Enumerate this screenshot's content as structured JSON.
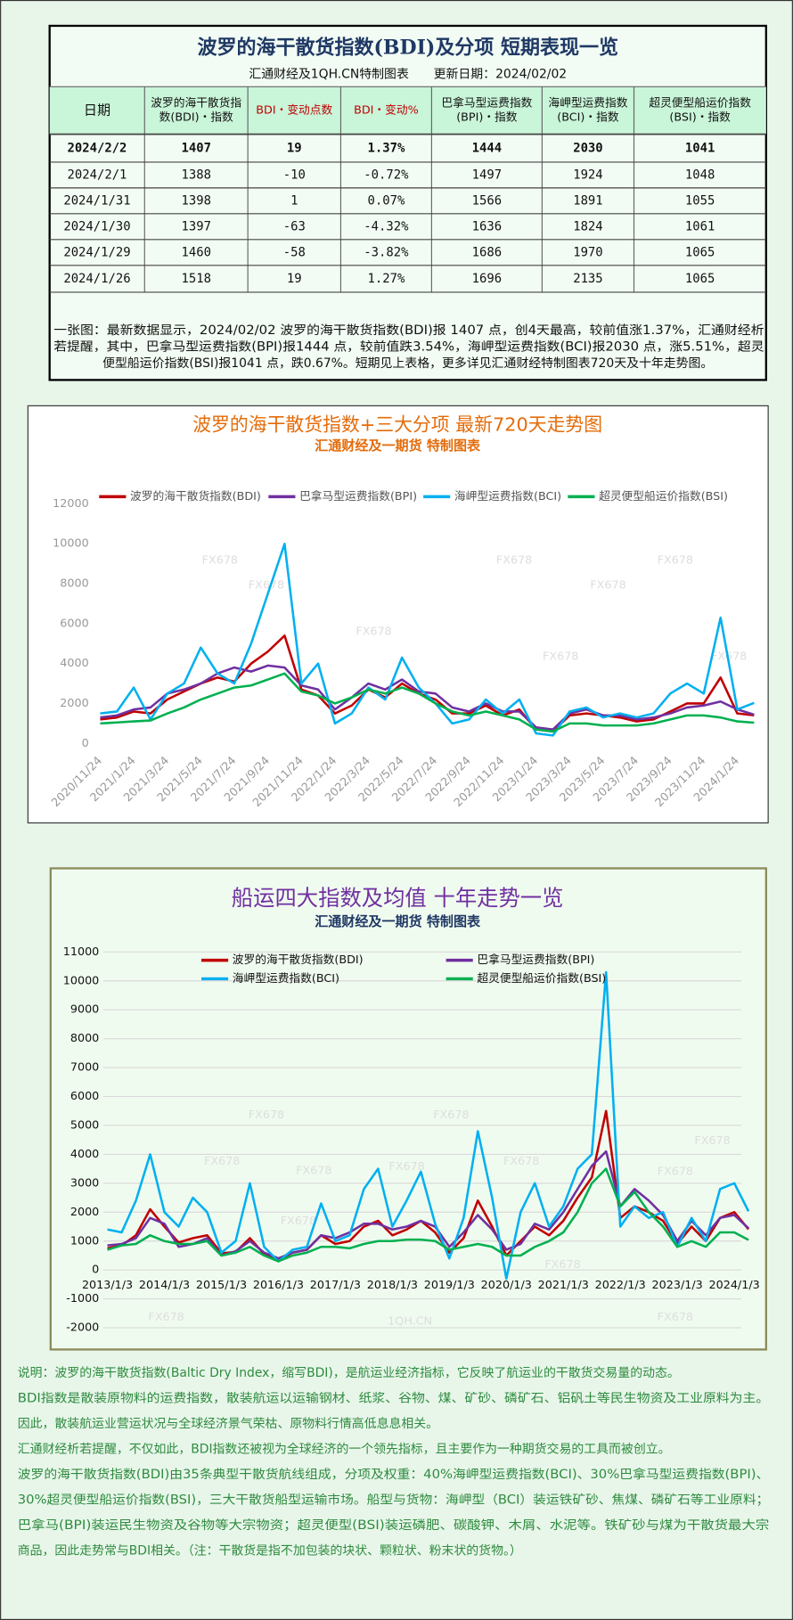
{
  "header": {
    "title": "波罗的海干散货指数(BDI)及分项  短期表现一览",
    "subtitle": "汇通财经及1QH.CN特制图表　　更新日期：2024/02/02"
  },
  "table": {
    "columns": [
      [
        "日期"
      ],
      [
        "波罗的海干散货指",
        "数(BDI)・指数"
      ],
      [
        "BDI・变动点数"
      ],
      [
        "BDI・变动%"
      ],
      [
        "巴拿马型运费指数",
        "(BPI)・指数"
      ],
      [
        "海岬型运费指数",
        "(BCI)・指数"
      ],
      [
        "超灵便型船运价指数",
        "(BSI)・指数"
      ]
    ],
    "rows": [
      [
        "2024/2/2",
        "1407",
        "19",
        "1.37%",
        "1444",
        "2030",
        "1041"
      ],
      [
        "2024/2/1",
        "1388",
        "-10",
        "-0.72%",
        "1497",
        "1924",
        "1048"
      ],
      [
        "2024/1/31",
        "1398",
        "1",
        "0.07%",
        "1566",
        "1891",
        "1055"
      ],
      [
        "2024/1/30",
        "1397",
        "-63",
        "-4.32%",
        "1636",
        "1824",
        "1061"
      ],
      [
        "2024/1/29",
        "1460",
        "-58",
        "-3.82%",
        "1686",
        "1970",
        "1065"
      ],
      [
        "2024/1/26",
        "1518",
        "19",
        "1.27%",
        "1696",
        "2135",
        "1065"
      ]
    ]
  },
  "summary": [
    "一张图：最新数据显示，2024/02/02 波罗的海干散货指数(BDI)报 1407 点，创4天最高，较前值涨1.37%，汇通财经析",
    "若提醒，其中，巴拿马型运费指数(BPI)报1444 点，较前值跌3.54%，海岬型运费指数(BCI)报2030 点，涨5.51%，超灵",
    "便型船运价指数(BSI)报1041 点，跌0.67%。短期见上表格，更多详见汇通财经特制图表720天及十年走势图。"
  ],
  "chart_data": [
    {
      "type": "line",
      "title": "波罗的海干散货指数+三大分项  最新720天走势图",
      "subtitle": "汇通财经及一期货  特制图表",
      "grid": false,
      "legend": "top",
      "categories": [
        "2020/11/24",
        null,
        "2021/1/24",
        null,
        "2021/3/24",
        null,
        "2021/5/24",
        null,
        "2021/7/24",
        null,
        "2021/9/24",
        null,
        "2021/11/24",
        null,
        "2022/1/24",
        null,
        "2022/3/24",
        null,
        "2022/5/24",
        null,
        "2022/7/24",
        null,
        "2022/9/24",
        null,
        "2022/11/24",
        null,
        "2023/1/24",
        null,
        "2023/3/24",
        null,
        "2023/5/24",
        null,
        "2023/7/24",
        null,
        "2023/9/24",
        null,
        "2023/11/24",
        null,
        "2024/1/24",
        null
      ],
      "series": [
        {
          "name": "波罗的海干散货指数(BDI)",
          "color": "#c00000",
          "values": [
            1200,
            1300,
            1600,
            1500,
            2200,
            2600,
            3000,
            3300,
            3100,
            4000,
            4600,
            5400,
            2700,
            2400,
            1500,
            1900,
            2700,
            2300,
            3000,
            2500,
            2200,
            1500,
            1500,
            1900,
            1400,
            1700,
            700,
            600,
            1400,
            1500,
            1400,
            1300,
            1100,
            1200,
            1600,
            2000,
            2000,
            3300,
            1500,
            1407
          ]
        },
        {
          "name": "巴拿马型运费指数(BPI)",
          "color": "#7030a0",
          "values": [
            1300,
            1400,
            1700,
            1800,
            2500,
            2700,
            3000,
            3500,
            3800,
            3600,
            3900,
            3800,
            2900,
            2700,
            1700,
            2300,
            3000,
            2700,
            3200,
            2600,
            2500,
            1800,
            1600,
            2000,
            1600,
            1600,
            800,
            700,
            1500,
            1700,
            1400,
            1400,
            1200,
            1300,
            1500,
            1800,
            1900,
            2100,
            1700,
            1444
          ]
        },
        {
          "name": "海岬型运费指数(BCI)",
          "color": "#00b0f0",
          "values": [
            1500,
            1600,
            2800,
            1200,
            2500,
            3000,
            4800,
            3500,
            3000,
            5000,
            7500,
            10000,
            3000,
            4000,
            1000,
            1500,
            2800,
            2200,
            4300,
            2800,
            2000,
            1000,
            1200,
            2200,
            1500,
            2200,
            500,
            400,
            1600,
            1800,
            1300,
            1500,
            1300,
            1500,
            2500,
            3000,
            2500,
            6300,
            1700,
            2030
          ]
        },
        {
          "name": "超灵便型船运价指数(BSI)",
          "color": "#00b050",
          "values": [
            1000,
            1050,
            1100,
            1150,
            1500,
            1800,
            2200,
            2500,
            2800,
            2900,
            3200,
            3500,
            2600,
            2400,
            2000,
            2300,
            2700,
            2500,
            2800,
            2500,
            2000,
            1600,
            1400,
            1600,
            1400,
            1200,
            700,
            600,
            1000,
            1000,
            900,
            900,
            900,
            1000,
            1200,
            1400,
            1400,
            1300,
            1100,
            1041
          ]
        }
      ],
      "ylim": [
        0,
        12000
      ],
      "yticks": [
        0,
        2000,
        4000,
        6000,
        8000,
        10000,
        12000
      ],
      "watermarks": [
        "FX678",
        "FX678",
        "FX678",
        "FX678",
        "FX678",
        "FX678",
        "FX678",
        "FX678"
      ]
    },
    {
      "type": "line",
      "title": "船运四大指数及均值 十年走势一览",
      "subtitle": "汇通财经及一期货 特制图表",
      "grid": true,
      "legend": "top",
      "categories": [
        "2013/1/3",
        null,
        null,
        null,
        "2014/1/3",
        null,
        null,
        null,
        "2015/1/3",
        null,
        null,
        null,
        "2016/1/3",
        null,
        null,
        null,
        "2017/1/3",
        null,
        null,
        null,
        "2018/1/3",
        null,
        null,
        null,
        "2019/1/3",
        null,
        null,
        null,
        "2020/1/3",
        null,
        null,
        null,
        "2021/1/3",
        null,
        null,
        null,
        "2022/1/3",
        null,
        null,
        null,
        "2023/1/3",
        null,
        null,
        null,
        "2024/1/3",
        null
      ],
      "series": [
        {
          "name": "波罗的海干散货指数(BDI)",
          "color": "#c00000",
          "values": [
            750,
            850,
            1200,
            2100,
            1500,
            950,
            1100,
            1200,
            580,
            620,
            1100,
            550,
            350,
            600,
            700,
            1200,
            900,
            1000,
            1500,
            1700,
            1200,
            1400,
            1700,
            1300,
            600,
            1100,
            2400,
            1500,
            500,
            1000,
            1500,
            1200,
            1700,
            2500,
            3200,
            5500,
            1800,
            2200,
            2000,
            1700,
            900,
            1500,
            1000,
            1800,
            2000,
            1407
          ]
        },
        {
          "name": "巴拿马型运费指数(BPI)",
          "color": "#7030a0",
          "values": [
            850,
            900,
            1100,
            1800,
            1600,
            800,
            900,
            1100,
            500,
            650,
            1000,
            600,
            400,
            600,
            700,
            1200,
            1100,
            1300,
            1600,
            1600,
            1400,
            1500,
            1700,
            1500,
            800,
            1300,
            1900,
            1400,
            700,
            900,
            1600,
            1400,
            2000,
            2800,
            3600,
            4100,
            2200,
            2800,
            2400,
            1900,
            1000,
            1700,
            1200,
            1800,
            1900,
            1444
          ]
        },
        {
          "name": "海岬型运费指数(BCI)",
          "color": "#00b0f0",
          "values": [
            1400,
            1300,
            2400,
            4000,
            2000,
            1500,
            2500,
            2000,
            600,
            1000,
            3000,
            800,
            300,
            700,
            800,
            2300,
            1000,
            1200,
            2800,
            3500,
            1500,
            2400,
            3400,
            1600,
            400,
            1800,
            4800,
            2500,
            -300,
            2000,
            3000,
            1500,
            2200,
            3500,
            4000,
            10300,
            1500,
            2200,
            1800,
            2000,
            800,
            1800,
            1000,
            2800,
            3000,
            2030
          ]
        },
        {
          "name": "超灵便型船运价指数(BSI)",
          "color": "#00b050",
          "values": [
            700,
            850,
            900,
            1200,
            1000,
            900,
            900,
            1000,
            500,
            600,
            800,
            500,
            300,
            500,
            600,
            800,
            800,
            750,
            900,
            1000,
            1000,
            1050,
            1050,
            1000,
            700,
            800,
            900,
            800,
            500,
            500,
            800,
            1000,
            1300,
            2000,
            3000,
            3500,
            2200,
            2700,
            2000,
            1500,
            800,
            1000,
            800,
            1300,
            1300,
            1041
          ]
        }
      ],
      "ylim": [
        -2000,
        11000
      ],
      "yticks": [
        -2000,
        -1000,
        0,
        1000,
        2000,
        3000,
        4000,
        5000,
        6000,
        7000,
        8000,
        9000,
        10000,
        11000
      ],
      "watermarks": [
        "FX678",
        "FX678",
        "FX678",
        "FX678",
        "FX678",
        "FX678",
        "FX678",
        "FX678",
        "FX678",
        "FX678",
        "FX678",
        "FX678",
        "1QH.CN"
      ]
    }
  ],
  "notes": [
    "说明：波罗的海干散货指数(Baltic Dry Index，缩写BDI)，是航运业经济指标，它反映了航运业的干散货交易量的动态。",
    "BDI指数是散装原物料的运费指数，散装航运以运输钢材、纸浆、谷物、煤、矿砂、磷矿石、铝矾土等民生物资及工业原料为主。",
    "因此，散装航运业营运状况与全球经济景气荣枯、原物料行情高低息息相关。",
    "汇通财经析若提醒，不仅如此，BDI指数还被视为全球经济的一个领先指标，且主要作为一种期货交易的工具而被创立。",
    "波罗的海干散货指数(BDI)由35条典型干散货航线组成，分项及权重：40%海岬型运费指数(BCI)、30%巴拿马型运费指数(BPI)、",
    "30%超灵便型船运价指数(BSI)，三大干散货船型运输市场。船型与货物：海岬型（BCI）装运铁矿砂、焦煤、磷矿石等工业原料；",
    "巴拿马(BPI)装运民生物资及谷物等大宗物资；超灵便型(BSI)装运磷肥、碳酸钾、木屑、水泥等。铁矿砂与煤为干散货最大宗",
    "商品，因此走势常与BDI相关。（注：干散货是指不加包装的块状、颗粒状、粉末状的货物。）"
  ]
}
